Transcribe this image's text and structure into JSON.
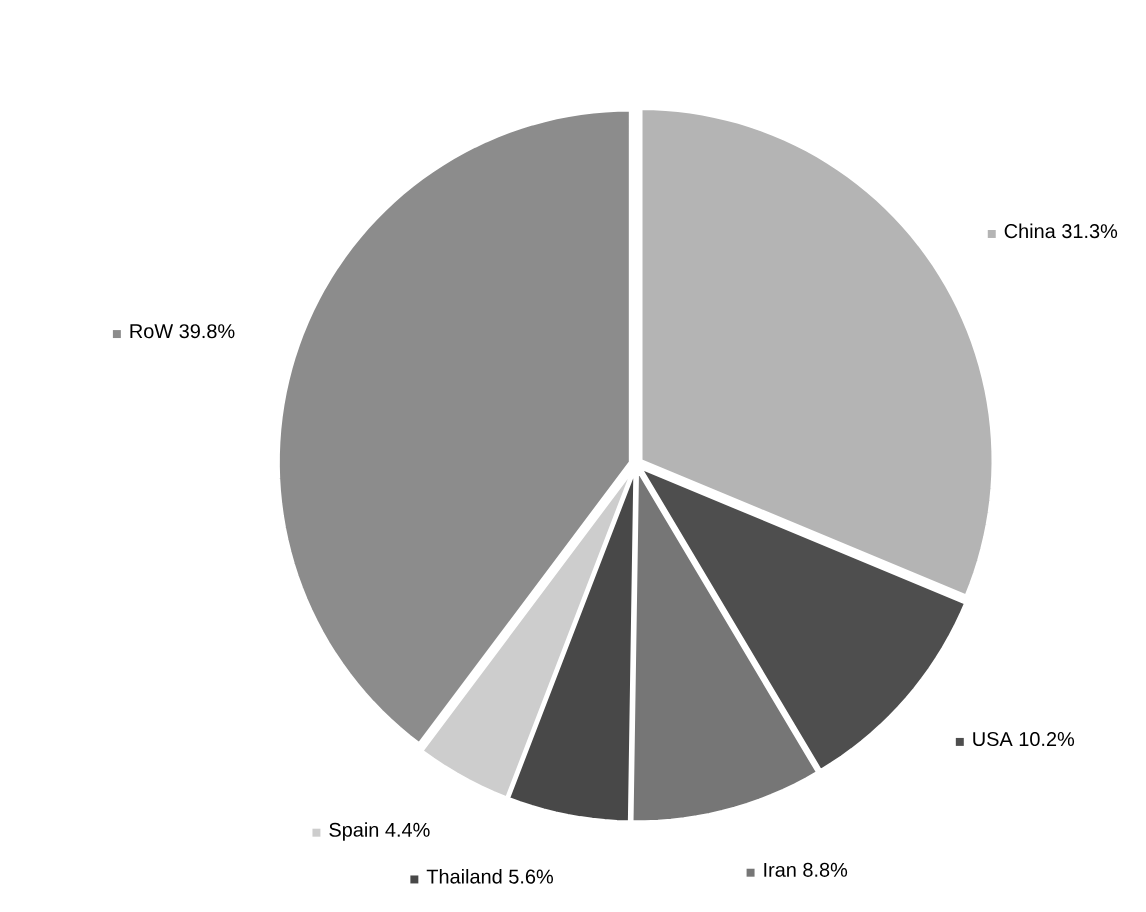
{
  "chart_data": {
    "type": "pie",
    "categories": [
      "China",
      "USA",
      "Iran",
      "Thailand",
      "Spain",
      "RoW"
    ],
    "values": [
      31.3,
      10.2,
      8.8,
      5.6,
      4.4,
      39.8
    ],
    "colors": [
      "#b4b4b4",
      "#4e4e4e",
      "#767676",
      "#484848",
      "#cdcdcd",
      "#8c8c8c"
    ],
    "value_labels": [
      "31.3%",
      "10.2%",
      "8.8%",
      "5.6%",
      "4.4%",
      "39.8%"
    ],
    "legend": "bottom left"
  }
}
